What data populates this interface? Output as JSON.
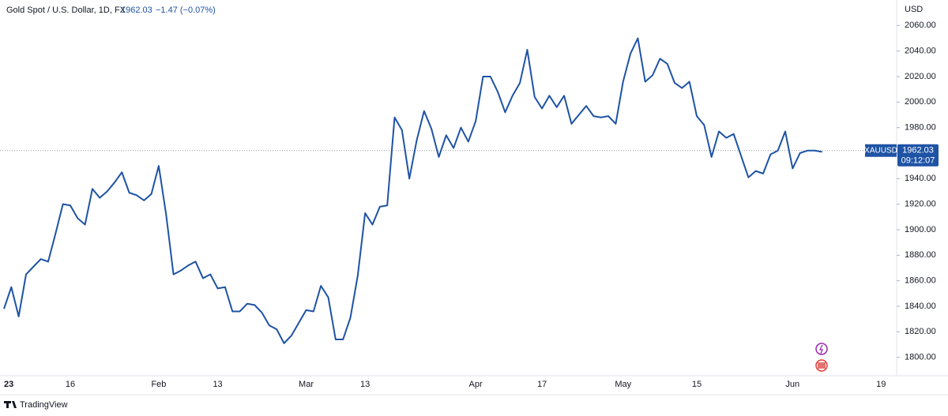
{
  "chart_data": {
    "type": "line",
    "title": "Gold Spot / U.S. Dollar, 1D, FX",
    "last_price": 1962.03,
    "change_text": "−1.47 (−0.07%)",
    "currency": "USD",
    "symbol": "XAUUSD",
    "countdown": "09:12:07",
    "brand": "TradingView",
    "color": "#1e53a5",
    "grid": false,
    "ylim": [
      1780,
      2080
    ],
    "yticks": [
      {
        "value": 1800,
        "label": "1800.00"
      },
      {
        "value": 1820,
        "label": "1820.00"
      },
      {
        "value": 1840,
        "label": "1840.00"
      },
      {
        "value": 1860,
        "label": "1860.00"
      },
      {
        "value": 1880,
        "label": "1880.00"
      },
      {
        "value": 1900,
        "label": "1900.00"
      },
      {
        "value": 1920,
        "label": "1920.00"
      },
      {
        "value": 1940,
        "label": "1940.00"
      },
      {
        "value": 1960,
        "label": "1960.00"
      },
      {
        "value": 1980,
        "label": "1980.00"
      },
      {
        "value": 2000,
        "label": "2000.00"
      },
      {
        "value": 2020,
        "label": "2020.00"
      },
      {
        "value": 2040,
        "label": "2040.00"
      },
      {
        "value": 2060,
        "label": "2060.00"
      }
    ],
    "categories": [
      "23",
      null,
      null,
      null,
      null,
      null,
      null,
      null,
      null,
      "16",
      null,
      null,
      null,
      null,
      null,
      null,
      null,
      null,
      null,
      null,
      null,
      "Feb",
      null,
      null,
      null,
      null,
      null,
      null,
      null,
      "13",
      null,
      null,
      null,
      null,
      null,
      null,
      null,
      null,
      null,
      null,
      null,
      "Mar",
      null,
      null,
      null,
      null,
      null,
      null,
      null,
      "13",
      null,
      null,
      null,
      null,
      null,
      null,
      null,
      null,
      null,
      null,
      null,
      null,
      null,
      null,
      "Apr",
      null,
      null,
      null,
      null,
      null,
      null,
      null,
      null,
      "17",
      null,
      null,
      null,
      null,
      null,
      null,
      null,
      null,
      null,
      null,
      "May",
      null,
      null,
      null,
      null,
      null,
      null,
      null,
      null,
      null,
      "15",
      null,
      null,
      null,
      null,
      null,
      null,
      null,
      null,
      null,
      null,
      null,
      null,
      "Jun",
      null,
      null,
      null,
      null,
      null,
      null,
      null,
      null,
      null,
      null,
      null,
      "19"
    ],
    "values": [
      1838,
      1855,
      1832,
      1865,
      1871,
      1877,
      1875,
      1897,
      1920,
      1919,
      1909,
      1904,
      1932,
      1925,
      1930,
      1937,
      1945,
      1929,
      1927,
      1923,
      1928,
      1950,
      1912,
      1865,
      1868,
      1872,
      1875,
      1862,
      1865,
      1854,
      1855,
      1836,
      1836,
      1842,
      1841,
      1835,
      1825,
      1822,
      1811,
      1817,
      1827,
      1837,
      1836,
      1856,
      1847,
      1814,
      1814,
      1831,
      1864,
      1913,
      1904,
      1918,
      1919,
      1988,
      1978,
      1940,
      1970,
      1993,
      1979,
      1957,
      1974,
      1964,
      1980,
      1969,
      1985,
      2020,
      2020,
      2008,
      1992,
      2005,
      2015,
      2041,
      2004,
      1995,
      2005,
      1996,
      2005,
      1983,
      1990,
      1997,
      1989,
      1988,
      1989,
      1983,
      2016,
      2038,
      2050,
      2016,
      2021,
      2034,
      2030,
      2015,
      2011,
      2016,
      1989,
      1982,
      1957,
      1977,
      1972,
      1975,
      1958,
      1941,
      1946,
      1944,
      1959,
      1962,
      1977,
      1948,
      1960,
      1962,
      1962,
      1961,
      null,
      null,
      null,
      null,
      null,
      null,
      null,
      null
    ]
  }
}
